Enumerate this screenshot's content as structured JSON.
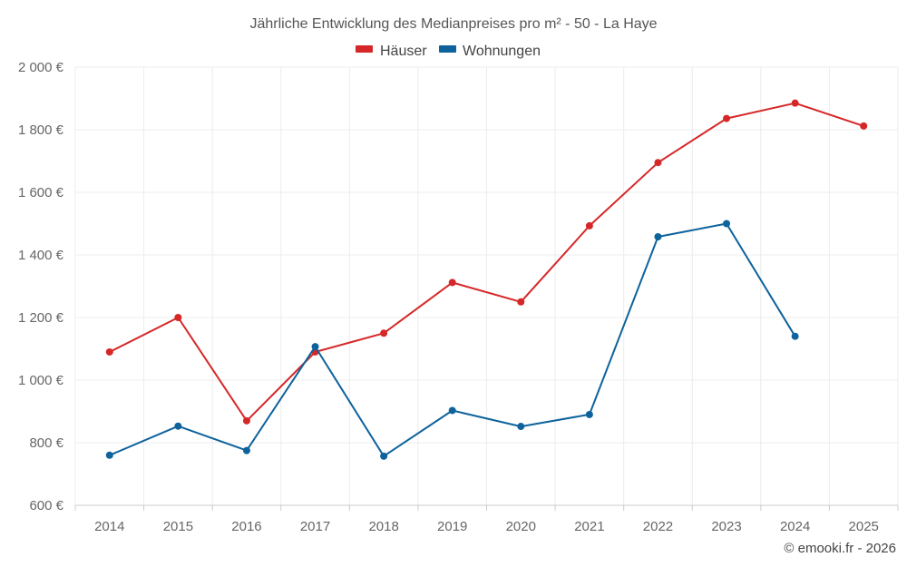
{
  "chart_data": {
    "type": "line",
    "title": "Jährliche Entwicklung des Medianpreises pro m² - 50 - La Haye",
    "categories": [
      "2014",
      "2015",
      "2016",
      "2017",
      "2018",
      "2019",
      "2020",
      "2021",
      "2022",
      "2023",
      "2024",
      "2025"
    ],
    "ylim": [
      600,
      2000
    ],
    "yticks": [
      600,
      800,
      1000,
      1200,
      1400,
      1600,
      1800,
      2000
    ],
    "ytick_labels": [
      "600 €",
      "800 €",
      "1 000 €",
      "1 200 €",
      "1 400 €",
      "1 600 €",
      "1 800 €",
      "2 000 €"
    ],
    "series": [
      {
        "name": "Häuser",
        "color": "#d62728",
        "values": [
          1090,
          1200,
          870,
          1090,
          1150,
          1312,
          1250,
          1493,
          1695,
          1836,
          1885,
          1812
        ]
      },
      {
        "name": "Wohnungen",
        "color": "#0e639c",
        "values": [
          760,
          853,
          775,
          1107,
          757,
          903,
          852,
          890,
          1458,
          1500,
          1140,
          null
        ]
      }
    ],
    "grid": true,
    "legend": "top-center"
  },
  "credit": "© emooki.fr - 2026"
}
